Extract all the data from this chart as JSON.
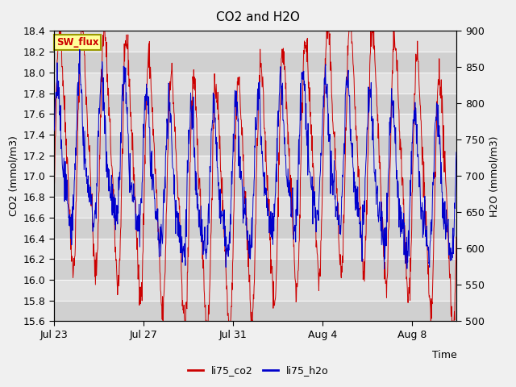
{
  "title": "CO2 and H2O",
  "xlabel": "Time",
  "ylabel_left": "CO2 (mmol/m3)",
  "ylabel_right": "H2O (mmol/m3)",
  "ylim_left": [
    15.6,
    18.4
  ],
  "ylim_right": [
    500,
    900
  ],
  "yticks_left": [
    15.6,
    15.8,
    16.0,
    16.2,
    16.4,
    16.6,
    16.8,
    17.0,
    17.2,
    17.4,
    17.6,
    17.8,
    18.0,
    18.2,
    18.4
  ],
  "yticks_right": [
    500,
    550,
    600,
    650,
    700,
    750,
    800,
    850,
    900
  ],
  "xtick_labels": [
    "Jul 23",
    "Jul 27",
    "Jul 31",
    "Aug 4",
    "Aug 8"
  ],
  "color_co2": "#cc0000",
  "color_h2o": "#0000cc",
  "label_co2": "li75_co2",
  "label_h2o": "li75_h2o",
  "sw_flux_label": "SW_flux",
  "fig_bg": "#f0f0f0",
  "plot_bg": "#e8e8e8",
  "band_light": "#e0e0e0",
  "band_dark": "#d0d0d0",
  "n_points": 1200,
  "seed": 42
}
